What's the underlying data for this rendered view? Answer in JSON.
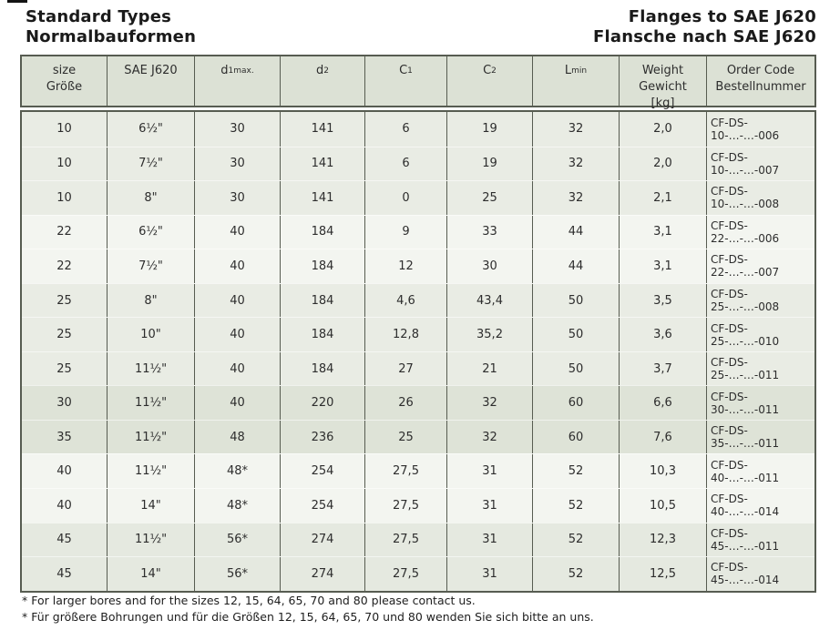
{
  "page": {
    "title_left_line1": "Standard Types",
    "title_left_line2": "Normalbauformen",
    "title_right_line1": "Flanges to SAE J620",
    "title_right_line2": "Flansche nach SAE J620"
  },
  "table": {
    "columns": [
      {
        "line1": "size",
        "line2": "Größe"
      },
      {
        "line1": "SAE J620"
      },
      {
        "base": "d",
        "sub": "1max."
      },
      {
        "base": "d",
        "sub": "2"
      },
      {
        "base": "C",
        "sub": "1"
      },
      {
        "base": "C",
        "sub": "2"
      },
      {
        "base": "L",
        "sub": "min"
      },
      {
        "line1": "Weight",
        "line2": "Gewicht",
        "line3": "[kg]"
      },
      {
        "line1": "Order Code",
        "line2": "Bestellnummer"
      }
    ],
    "rows": [
      {
        "shade": "m",
        "cells": [
          "10",
          "6½\"",
          "30",
          "141",
          "6",
          "19",
          "32",
          "2,0",
          "CF-DS-10-…-…-006"
        ]
      },
      {
        "shade": "m",
        "cells": [
          "10",
          "7½\"",
          "30",
          "141",
          "6",
          "19",
          "32",
          "2,0",
          "CF-DS-10-…-…-007"
        ]
      },
      {
        "shade": "m",
        "cells": [
          "10",
          "8\"",
          "30",
          "141",
          "0",
          "25",
          "32",
          "2,1",
          "CF-DS-10-…-…-008"
        ]
      },
      {
        "shade": "l",
        "cells": [
          "22",
          "6½\"",
          "40",
          "184",
          "9",
          "33",
          "44",
          "3,1",
          "CF-DS-22-…-…-006"
        ]
      },
      {
        "shade": "l",
        "cells": [
          "22",
          "7½\"",
          "40",
          "184",
          "12",
          "30",
          "44",
          "3,1",
          "CF-DS-22-…-…-007"
        ]
      },
      {
        "shade": "m",
        "cells": [
          "25",
          "8\"",
          "40",
          "184",
          "4,6",
          "43,4",
          "50",
          "3,5",
          "CF-DS-25-…-…-008"
        ]
      },
      {
        "shade": "m",
        "cells": [
          "25",
          "10\"",
          "40",
          "184",
          "12,8",
          "35,2",
          "50",
          "3,6",
          "CF-DS-25-…-…-010"
        ]
      },
      {
        "shade": "m",
        "cells": [
          "25",
          "11½\"",
          "40",
          "184",
          "27",
          "21",
          "50",
          "3,7",
          "CF-DS-25-…-…-011"
        ]
      },
      {
        "shade": "d",
        "cells": [
          "30",
          "11½\"",
          "40",
          "220",
          "26",
          "32",
          "60",
          "6,6",
          "CF-DS-30-…-…-011"
        ]
      },
      {
        "shade": "d",
        "cells": [
          "35",
          "11½\"",
          "48",
          "236",
          "25",
          "32",
          "60",
          "7,6",
          "CF-DS-35-…-…-011"
        ]
      },
      {
        "shade": "l",
        "cells": [
          "40",
          "11½\"",
          "48*",
          "254",
          "27,5",
          "31",
          "52",
          "10,3",
          "CF-DS-40-…-…-011"
        ]
      },
      {
        "shade": "l",
        "cells": [
          "40",
          "14\"",
          "48*",
          "254",
          "27,5",
          "31",
          "52",
          "10,5",
          "CF-DS-40-…-…-014"
        ]
      },
      {
        "shade": "md",
        "cells": [
          "45",
          "11½\"",
          "56*",
          "274",
          "27,5",
          "31",
          "52",
          "12,3",
          "CF-DS-45-…-…-011"
        ]
      },
      {
        "shade": "md",
        "cells": [
          "45",
          "14\"",
          "56*",
          "274",
          "27,5",
          "31",
          "52",
          "12,5",
          "CF-DS-45-…-…-014"
        ]
      }
    ]
  },
  "footnotes": [
    "* For larger bores and for the sizes 12, 15, 64, 65, 70 and 80 please contact us.",
    "* Für größere Bohrungen und für die Größen 12, 15, 64, 65, 70 und 80 wenden Sie sich bitte an uns."
  ],
  "colors": {
    "table_border": "#575c51",
    "header_bg": "#dce1d5",
    "row_medium": "#e9ece4",
    "row_light": "#f3f5f0",
    "row_dark": "#dee3d7",
    "row_medium_dark": "#e5e9e0",
    "text": "#2d2d2d",
    "title_text": "#1a1a1a"
  }
}
